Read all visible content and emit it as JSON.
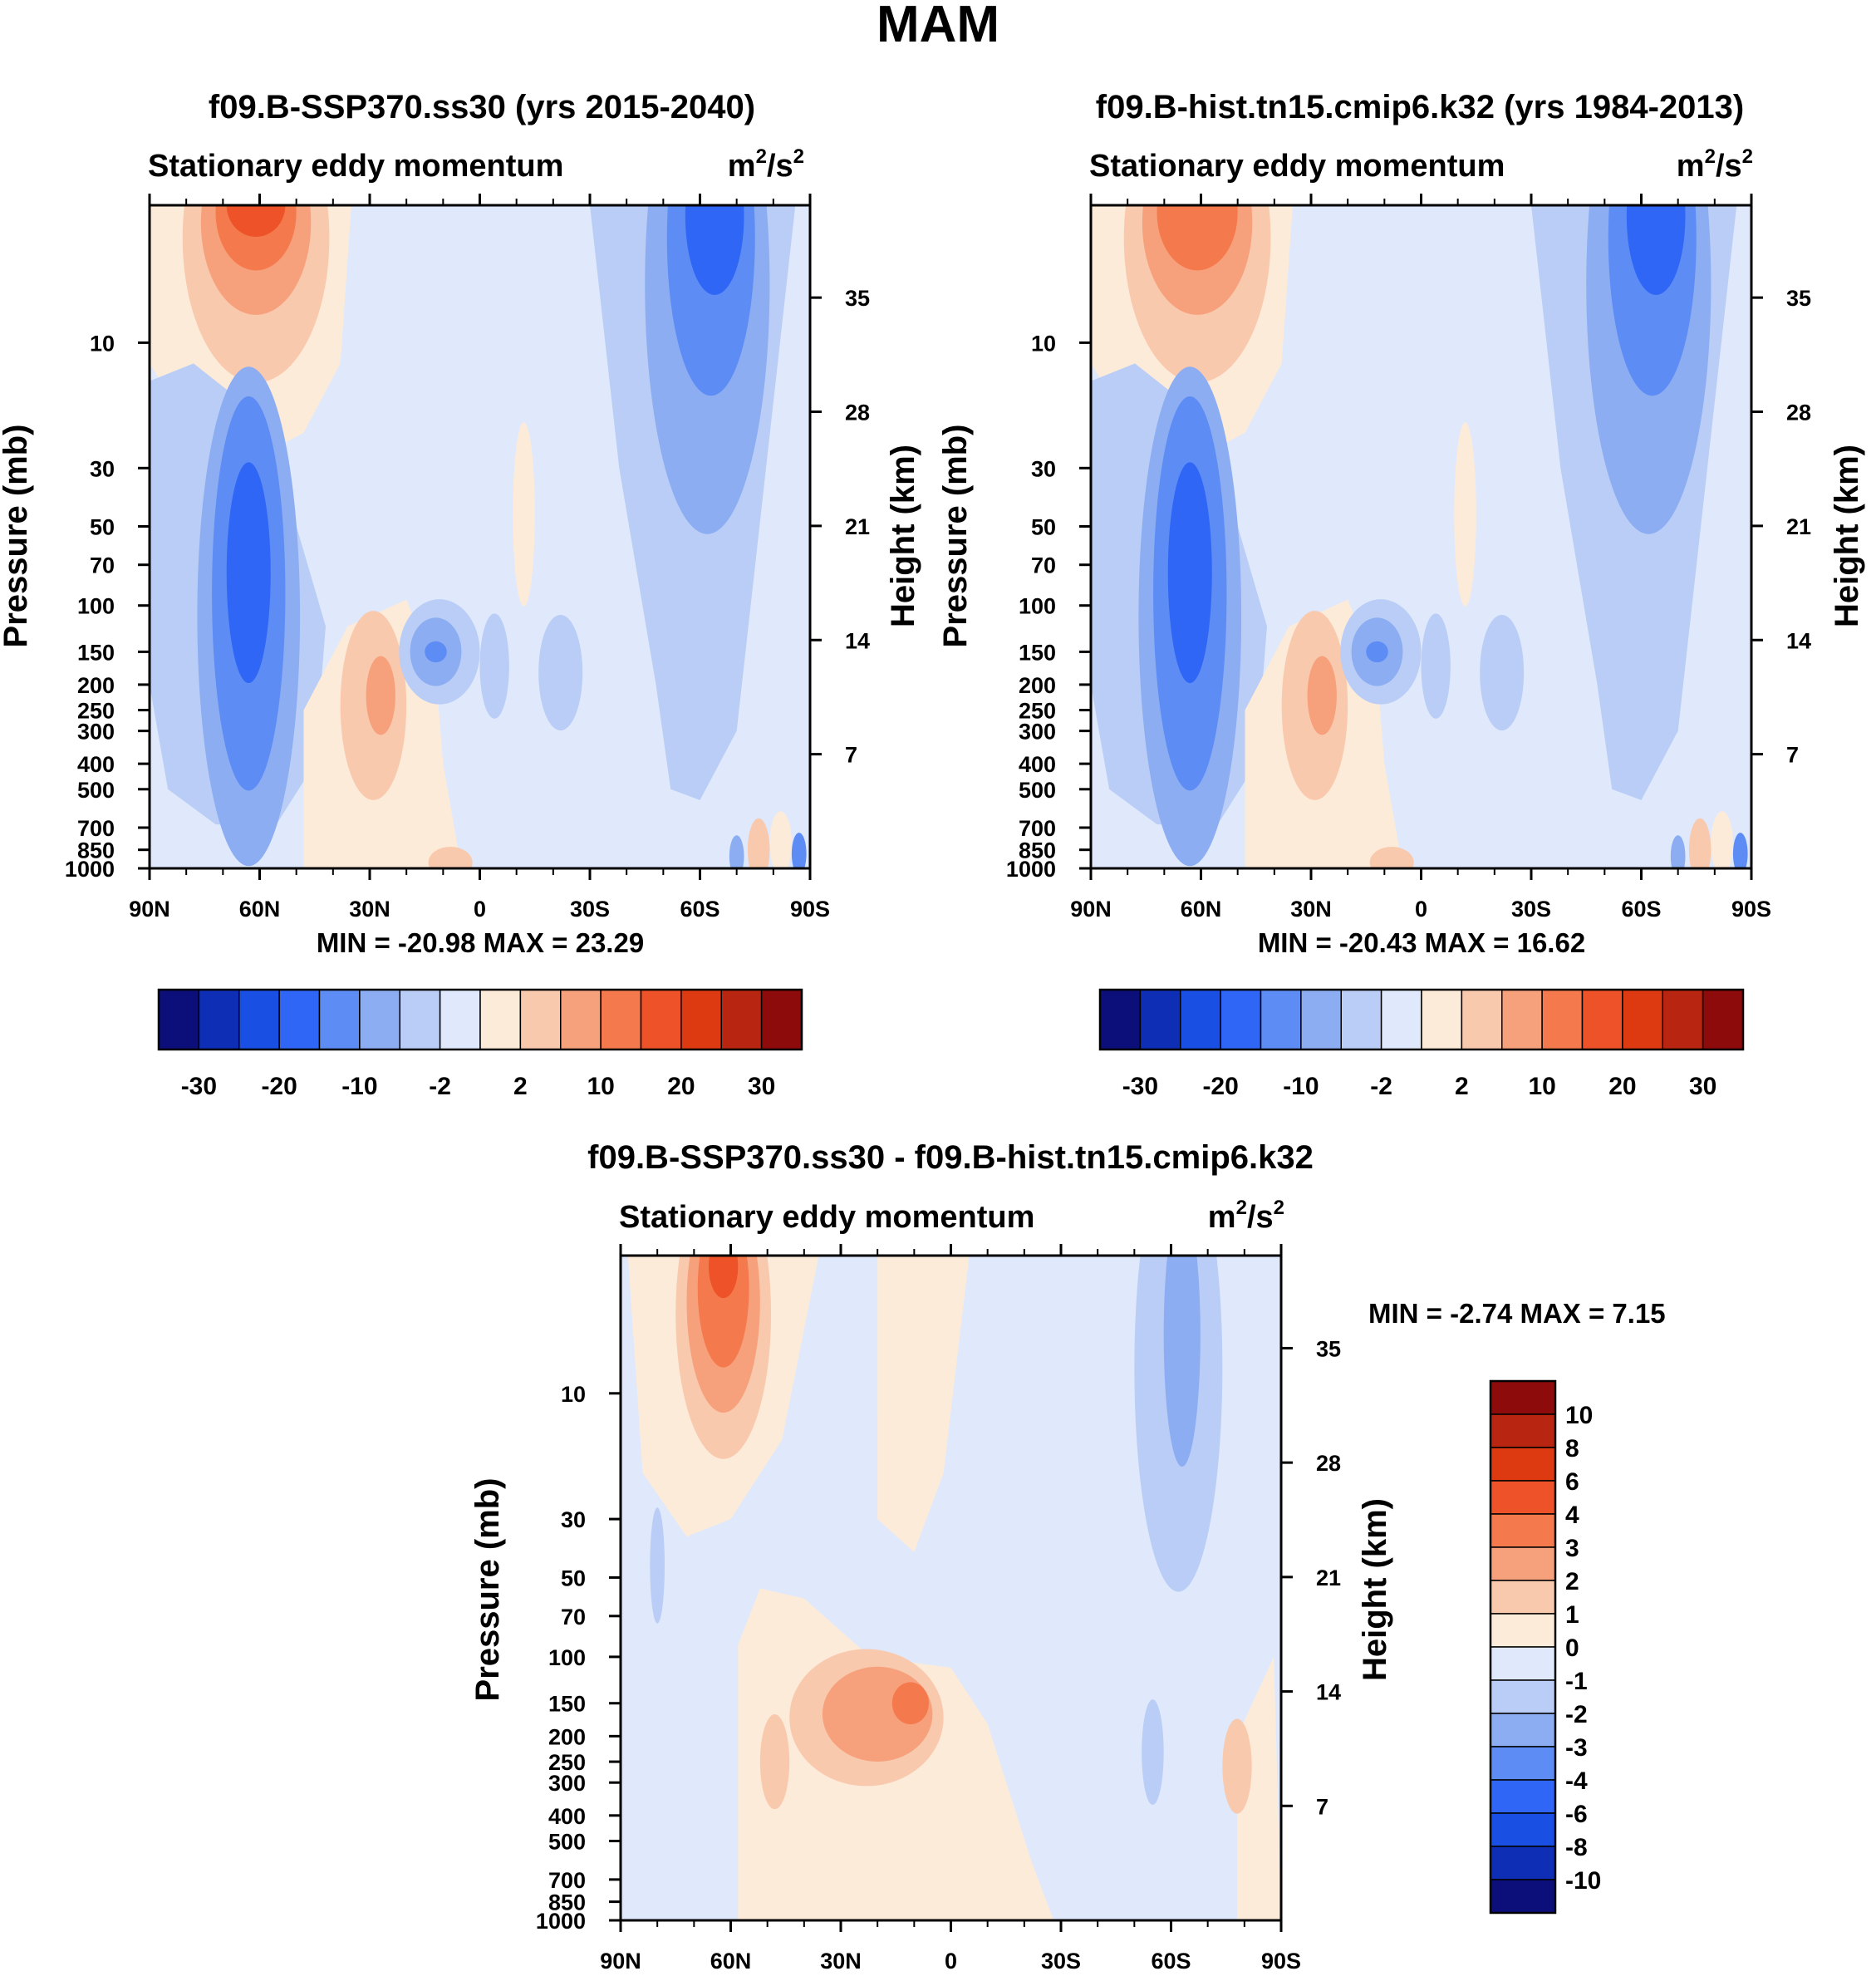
{
  "title": "MAM",
  "panels": [
    {
      "id": "p1",
      "title": "f09.B-SSP370.ss30 (yrs 2015-2040)",
      "left_string": "Stationary eddy momentum",
      "units_base": "m",
      "units_exp1": "2",
      "units_mid": "/s",
      "units_exp2": "2",
      "stats": "MIN = -20.98  MAX =  23.29"
    },
    {
      "id": "p2",
      "title": "f09.B-hist.tn15.cmip6.k32 (yrs 1984-2013)",
      "left_string": "Stationary eddy momentum",
      "units_base": "m",
      "units_exp1": "2",
      "units_mid": "/s",
      "units_exp2": "2",
      "stats": "MIN = -20.43  MAX =  16.62"
    },
    {
      "id": "p3",
      "title": "f09.B-SSP370.ss30 - f09.B-hist.tn15.cmip6.k32",
      "left_string": "Stationary eddy momentum",
      "units_base": "m",
      "units_exp1": "2",
      "units_mid": "/s",
      "units_exp2": "2",
      "stats": "MIN =  -2.74  MAX =   7.15"
    }
  ],
  "chart_data": [
    {
      "type": "heatmap",
      "title": "f09.B-SSP370.ss30 (yrs 2015-2040)",
      "subtitle": "Stationary eddy momentum",
      "units": "m2/s2",
      "xlabel": "",
      "ylabel": "Pressure (mb)",
      "y2label": "Height (km)",
      "x_ticks": [
        "90N",
        "60N",
        "30N",
        "0",
        "30S",
        "60S",
        "90S"
      ],
      "y_ticks": [
        10,
        30,
        50,
        70,
        100,
        150,
        200,
        250,
        300,
        400,
        500,
        700,
        850,
        1000
      ],
      "y2_ticks": [
        35,
        28,
        21,
        14,
        7
      ],
      "y_scale": "log",
      "ylim": [
        3,
        1000
      ],
      "xlim": [
        90,
        -90
      ],
      "min": -20.98,
      "max": 23.29,
      "features": [
        {
          "center_lat": 62,
          "center_p": 5,
          "value": 25
        },
        {
          "center_lat": 62,
          "center_p": 75,
          "value": -18
        },
        {
          "center_lat": 28,
          "center_p": 230,
          "value": 8
        },
        {
          "center_lat": 12,
          "center_p": 150,
          "value": -8
        },
        {
          "center_lat": -65,
          "center_p": 4,
          "value": -18
        }
      ]
    },
    {
      "type": "heatmap",
      "title": "f09.B-hist.tn15.cmip6.k32 (yrs 1984-2013)",
      "subtitle": "Stationary eddy momentum",
      "units": "m2/s2",
      "xlabel": "",
      "ylabel": "Pressure (mb)",
      "y2label": "Height (km)",
      "x_ticks": [
        "90N",
        "60N",
        "30N",
        "0",
        "30S",
        "60S",
        "90S"
      ],
      "y_ticks": [
        10,
        30,
        50,
        70,
        100,
        150,
        200,
        250,
        300,
        400,
        500,
        700,
        850,
        1000
      ],
      "y2_ticks": [
        35,
        28,
        21,
        14,
        7
      ],
      "y_scale": "log",
      "ylim": [
        3,
        1000
      ],
      "xlim": [
        90,
        -90
      ],
      "min": -20.43,
      "max": 16.62,
      "features": [
        {
          "center_lat": 62,
          "center_p": 5,
          "value": 16
        },
        {
          "center_lat": 62,
          "center_p": 70,
          "value": -18
        },
        {
          "center_lat": 28,
          "center_p": 230,
          "value": 7
        },
        {
          "center_lat": 12,
          "center_p": 150,
          "value": -10
        },
        {
          "center_lat": -65,
          "center_p": 4,
          "value": -20
        }
      ]
    },
    {
      "type": "heatmap",
      "title": "f09.B-SSP370.ss30 - f09.B-hist.tn15.cmip6.k32",
      "subtitle": "Stationary eddy momentum",
      "units": "m2/s2",
      "xlabel": "",
      "ylabel": "Pressure (mb)",
      "y2label": "Height (km)",
      "x_ticks": [
        "90N",
        "60N",
        "30N",
        "0",
        "30S",
        "60S",
        "90S"
      ],
      "y_ticks": [
        10,
        30,
        50,
        70,
        100,
        150,
        200,
        250,
        300,
        400,
        500,
        700,
        850,
        1000
      ],
      "y2_ticks": [
        35,
        28,
        21,
        14,
        7
      ],
      "y_scale": "log",
      "ylim": [
        3,
        1000
      ],
      "xlim": [
        90,
        -90
      ],
      "min": -2.74,
      "max": 7.15,
      "features": [
        {
          "center_lat": 62,
          "center_p": 5,
          "value": 6
        },
        {
          "center_lat": 15,
          "center_p": 160,
          "value": 4
        },
        {
          "center_lat": 48,
          "center_p": 240,
          "value": 2
        },
        {
          "center_lat": -62,
          "center_p": 6,
          "value": -2
        }
      ]
    }
  ],
  "colorbars": [
    {
      "orientation": "horizontal",
      "levels": [
        -30,
        -25,
        -20,
        -15,
        -10,
        -5,
        -2,
        0,
        2,
        5,
        10,
        15,
        20,
        25,
        30
      ],
      "labels": [
        "-30",
        "-20",
        "-10",
        "-2",
        "2",
        "10",
        "20",
        "30"
      ],
      "colors": [
        "#0c0f7a",
        "#0e2fb5",
        "#1a4fe4",
        "#2f66f5",
        "#5d8cf5",
        "#8cadf2",
        "#b9cdf6",
        "#dfe9fb",
        "#fdebd9",
        "#f9c9ae",
        "#f6a17c",
        "#f47a4d",
        "#ee5228",
        "#de3a12",
        "#b82510",
        "#8d0c0b"
      ]
    },
    {
      "orientation": "horizontal",
      "levels": [
        -30,
        -25,
        -20,
        -15,
        -10,
        -5,
        -2,
        0,
        2,
        5,
        10,
        15,
        20,
        25,
        30
      ],
      "labels": [
        "-30",
        "-20",
        "-10",
        "-2",
        "2",
        "10",
        "20",
        "30"
      ],
      "colors": [
        "#0c0f7a",
        "#0e2fb5",
        "#1a4fe4",
        "#2f66f5",
        "#5d8cf5",
        "#8cadf2",
        "#b9cdf6",
        "#dfe9fb",
        "#fdebd9",
        "#f9c9ae",
        "#f6a17c",
        "#f47a4d",
        "#ee5228",
        "#de3a12",
        "#b82510",
        "#8d0c0b"
      ]
    },
    {
      "orientation": "vertical",
      "labels": [
        "10",
        "8",
        "6",
        "4",
        "3",
        "2",
        "1",
        "0",
        "-1",
        "-2",
        "-3",
        "-4",
        "-6",
        "-8",
        "-10"
      ],
      "colors": [
        "#8d0c0b",
        "#b82510",
        "#de3a12",
        "#ee5228",
        "#f47a4d",
        "#f6a17c",
        "#f9c9ae",
        "#fdebd9",
        "#dfe9fb",
        "#b9cdf6",
        "#8cadf2",
        "#5d8cf5",
        "#2f66f5",
        "#1a4fe4",
        "#0e2fb5",
        "#0c0f7a"
      ]
    }
  ]
}
